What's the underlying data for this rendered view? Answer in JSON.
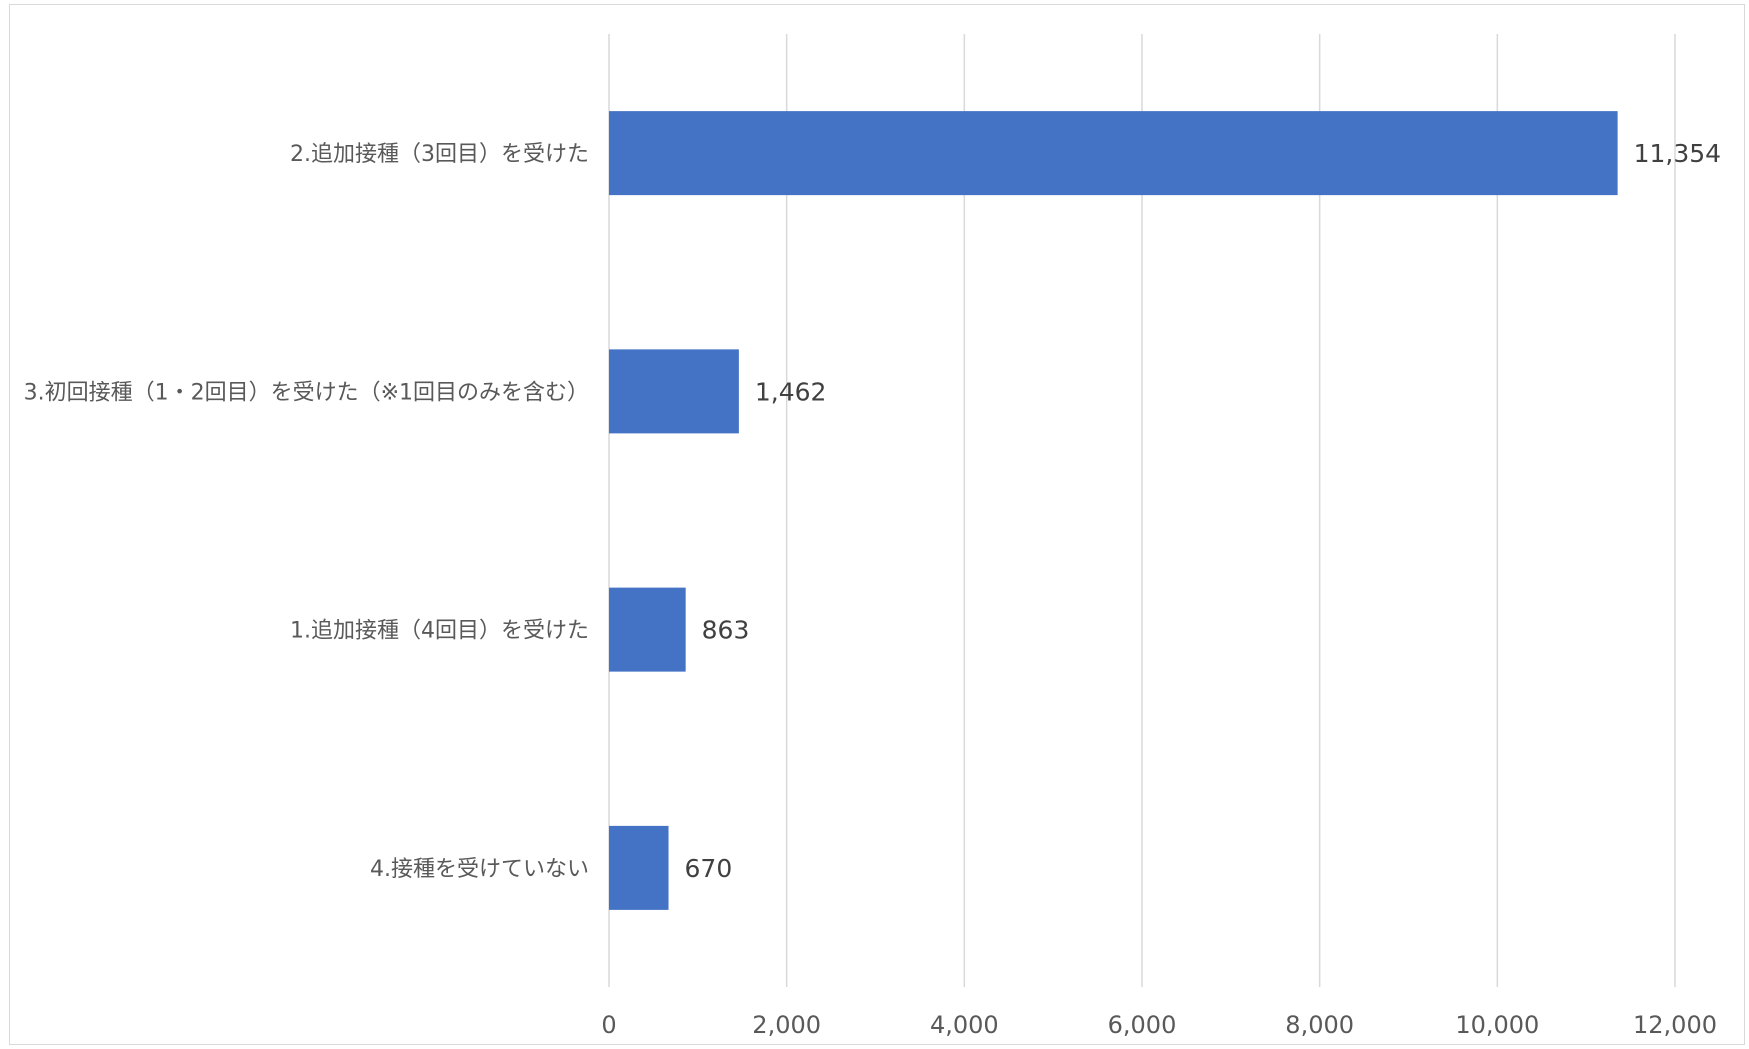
{
  "chart_data": {
    "type": "bar",
    "orientation": "horizontal",
    "categories": [
      "2.追加接種（3回目）を受けた",
      "3.初回接種（1・2回目）を受けた（※1回目のみを含む）",
      "1.追加接種（4回目）を受けた",
      "4.接種を受けていない"
    ],
    "values": [
      11354,
      1462,
      863,
      670
    ],
    "data_labels": [
      "11,354",
      "1,462",
      "863",
      "670"
    ],
    "xlim": [
      0,
      12000
    ],
    "x_ticks": [
      0,
      2000,
      4000,
      6000,
      8000,
      10000,
      12000
    ],
    "x_tick_labels": [
      "0",
      "2,000",
      "4,000",
      "6,000",
      "8,000",
      "10,000",
      "12,000"
    ],
    "grid": "vertical",
    "legend": "none",
    "bar_color": "#4472c4"
  }
}
